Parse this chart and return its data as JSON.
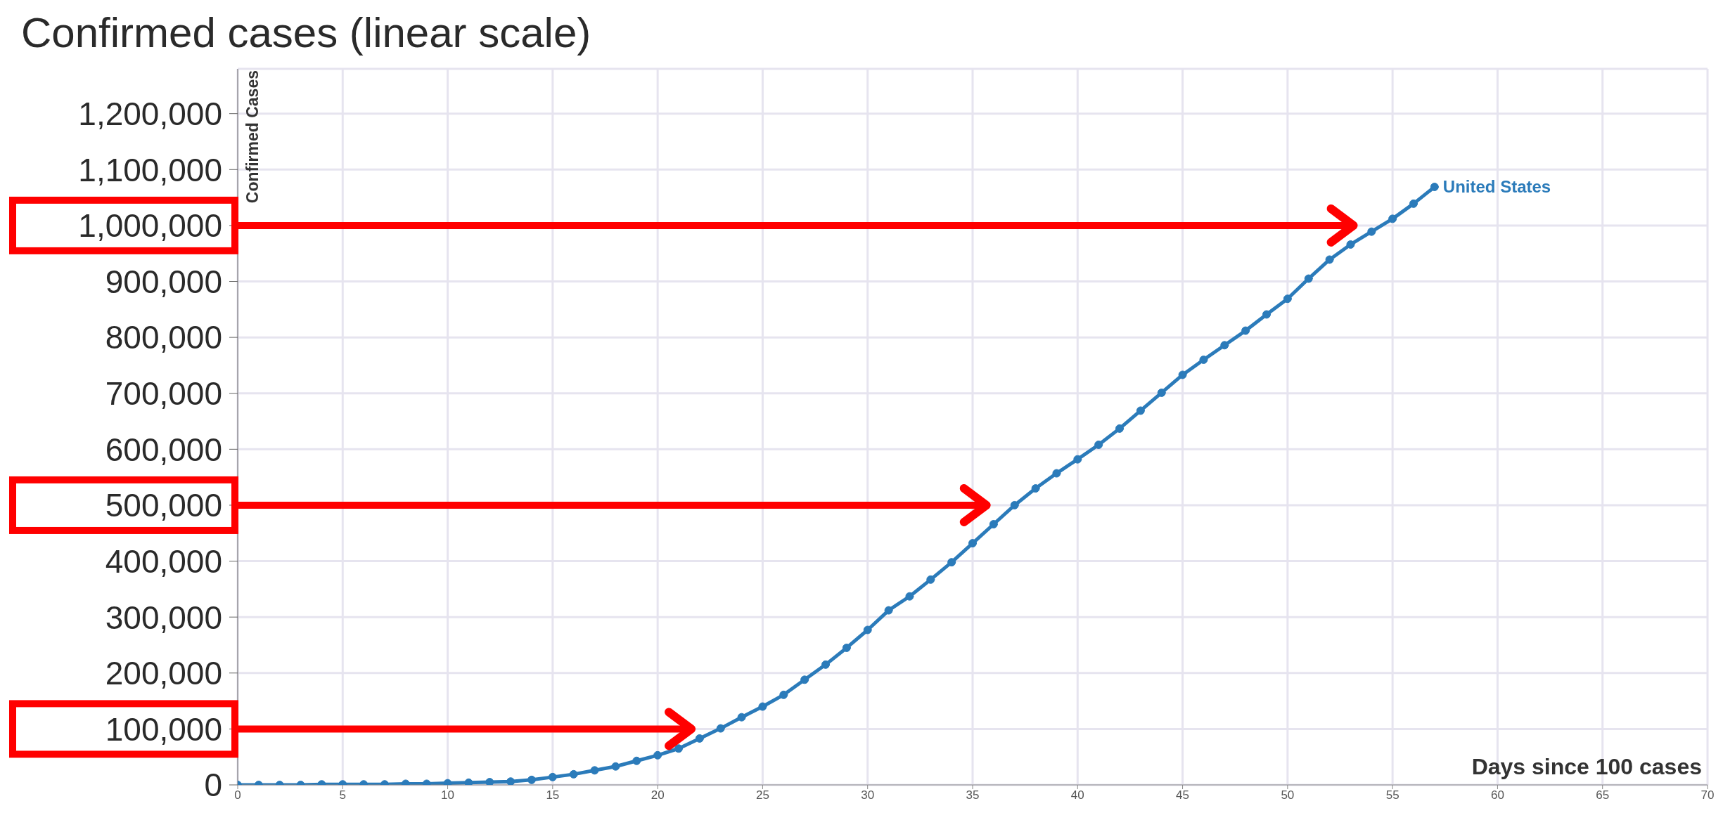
{
  "chart_data": {
    "type": "line",
    "title": "Confirmed cases (linear scale)",
    "xlabel": "Days since 100 cases",
    "ylabel": "Confirmed Cases",
    "x": [
      0,
      1,
      2,
      3,
      4,
      5,
      6,
      7,
      8,
      9,
      10,
      11,
      12,
      13,
      14,
      15,
      16,
      17,
      18,
      19,
      20,
      21,
      22,
      23,
      24,
      25,
      26,
      27,
      28,
      29,
      30,
      31,
      32,
      33,
      34,
      35,
      36,
      37,
      38,
      39,
      40,
      41,
      42,
      43,
      44,
      45,
      46,
      47,
      48,
      49,
      50,
      51,
      52,
      53,
      54,
      55,
      56,
      57
    ],
    "series": [
      {
        "name": "United States",
        "color": "#2b7bba",
        "values": [
          0,
          0,
          0,
          0,
          1000,
          1000,
          1000,
          1000,
          2000,
          2000,
          3000,
          4000,
          5000,
          6000,
          9000,
          14000,
          19000,
          26000,
          33000,
          43000,
          53000,
          65000,
          83000,
          101000,
          121000,
          140000,
          161000,
          188000,
          215000,
          245000,
          277000,
          312000,
          337000,
          367000,
          398000,
          432000,
          466000,
          500000,
          530000,
          557000,
          582000,
          608000,
          637000,
          669000,
          701000,
          733000,
          760000,
          786000,
          812000,
          841000,
          869000,
          905000,
          939000,
          966000,
          989000,
          1012000,
          1039000,
          1069000
        ]
      }
    ],
    "xlim": [
      0,
      70
    ],
    "xticks": [
      0,
      5,
      10,
      15,
      20,
      25,
      30,
      35,
      40,
      45,
      50,
      55,
      60,
      65,
      70
    ],
    "ylim": [
      0,
      1280000
    ],
    "yticks": [
      0,
      {
        "value": 100000,
        "label": "100,000"
      },
      {
        "value": 200000,
        "label": "200,000"
      },
      {
        "value": 300000,
        "label": "300,000"
      },
      {
        "value": 400000,
        "label": "400,000"
      },
      {
        "value": 500000,
        "label": "500,000"
      },
      {
        "value": 600000,
        "label": "600,000"
      },
      {
        "value": 700000,
        "label": "700,000"
      },
      {
        "value": 800000,
        "label": "800,000"
      },
      {
        "value": 900000,
        "label": "900,000"
      },
      {
        "value": 1000000,
        "label": "1,000,000"
      },
      {
        "value": 1100000,
        "label": "1,100,000"
      },
      {
        "value": 1200000,
        "label": "1,200,000"
      }
    ],
    "grid": true,
    "marker": "circle",
    "line_style": "solid",
    "ref_lines": [
      {
        "axis": "y",
        "value": 1000000,
        "color": "#ff0000"
      },
      {
        "axis": "y",
        "value": 500000,
        "color": "#ff0000"
      },
      {
        "axis": "y",
        "value": 100000,
        "color": "#ff0000"
      }
    ]
  }
}
